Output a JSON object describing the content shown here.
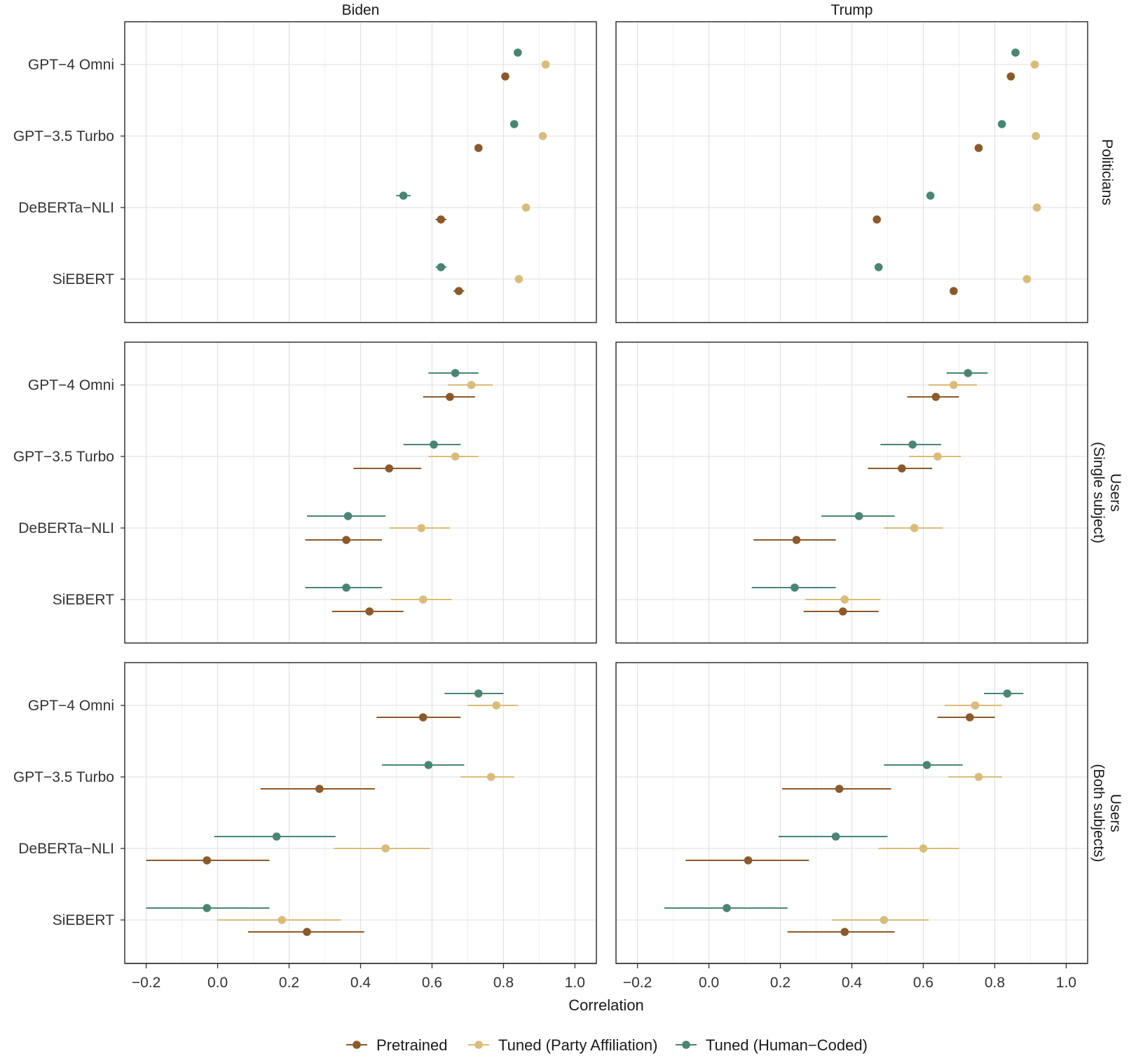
{
  "chart_data": {
    "type": "scatter",
    "subtype": "dot-and-whisker",
    "xlabel": "Correlation",
    "xlim": [
      -0.26,
      1.06
    ],
    "xticks": [
      "-0.2",
      "0.0",
      "0.2",
      "0.4",
      "0.6",
      "0.8",
      "1.0"
    ],
    "xtick_values": [
      -0.2,
      0,
      0.2,
      0.4,
      0.6,
      0.8,
      1.0
    ],
    "columns": [
      "Biden",
      "Trump"
    ],
    "rows": [
      "Politicians",
      "Users\n(Single subject)",
      "Users\n(Both subjects)"
    ],
    "models": [
      "GPT−4 Omni",
      "GPT−3.5 Turbo",
      "DeBERTa−NLI",
      "SiEBERT"
    ],
    "series": [
      {
        "name": "Pretrained",
        "color": "#8B5A2B"
      },
      {
        "name": "Tuned (Party Affiliation)",
        "color": "#D9BC7A"
      },
      {
        "name": "Tuned (Human−Coded)",
        "color": "#4A8573"
      }
    ],
    "panels": [
      {
        "column": "Biden",
        "row": "Politicians",
        "Pretrained": [
          [
            0.805,
            0.8,
            0.81
          ],
          [
            0.73,
            0.725,
            0.735
          ],
          [
            0.625,
            0.61,
            0.64
          ],
          [
            0.675,
            0.66,
            0.69
          ]
        ],
        "Tuned (Party Affiliation)": [
          [
            0.918,
            0.913,
            0.923
          ],
          [
            0.91,
            0.905,
            0.915
          ],
          [
            0.863,
            0.858,
            0.868
          ],
          [
            0.843,
            0.838,
            0.848
          ]
        ],
        "Tuned (Human−Coded)": [
          [
            0.84,
            0.835,
            0.845
          ],
          [
            0.83,
            0.825,
            0.835
          ],
          [
            0.52,
            0.5,
            0.54
          ],
          [
            0.625,
            0.61,
            0.64
          ]
        ]
      },
      {
        "column": "Trump",
        "row": "Politicians",
        "Pretrained": [
          [
            0.845,
            0.84,
            0.85
          ],
          [
            0.755,
            0.75,
            0.76
          ],
          [
            0.47,
            0.46,
            0.48
          ],
          [
            0.685,
            0.68,
            0.69
          ]
        ],
        "Tuned (Party Affiliation)": [
          [
            0.912,
            0.907,
            0.917
          ],
          [
            0.915,
            0.91,
            0.92
          ],
          [
            0.918,
            0.913,
            0.923
          ],
          [
            0.89,
            0.885,
            0.895
          ]
        ],
        "Tuned (Human−Coded)": [
          [
            0.858,
            0.853,
            0.863
          ],
          [
            0.82,
            0.815,
            0.825
          ],
          [
            0.62,
            0.615,
            0.625
          ],
          [
            0.475,
            0.465,
            0.485
          ]
        ]
      },
      {
        "column": "Biden",
        "row": "Users\n(Single subject)",
        "Pretrained": [
          [
            0.65,
            0.575,
            0.72
          ],
          [
            0.48,
            0.38,
            0.57
          ],
          [
            0.36,
            0.245,
            0.46
          ],
          [
            0.425,
            0.32,
            0.52
          ]
        ],
        "Tuned (Party Affiliation)": [
          [
            0.71,
            0.645,
            0.77
          ],
          [
            0.665,
            0.59,
            0.73
          ],
          [
            0.57,
            0.48,
            0.65
          ],
          [
            0.575,
            0.485,
            0.655
          ]
        ],
        "Tuned (Human−Coded)": [
          [
            0.665,
            0.59,
            0.73
          ],
          [
            0.605,
            0.52,
            0.68
          ],
          [
            0.365,
            0.25,
            0.47
          ],
          [
            0.36,
            0.245,
            0.46
          ]
        ]
      },
      {
        "column": "Trump",
        "row": "Users\n(Single subject)",
        "Pretrained": [
          [
            0.635,
            0.555,
            0.7
          ],
          [
            0.54,
            0.445,
            0.625
          ],
          [
            0.245,
            0.125,
            0.355
          ],
          [
            0.375,
            0.265,
            0.475
          ]
        ],
        "Tuned (Party Affiliation)": [
          [
            0.685,
            0.615,
            0.75
          ],
          [
            0.64,
            0.56,
            0.705
          ],
          [
            0.575,
            0.49,
            0.655
          ],
          [
            0.38,
            0.27,
            0.48
          ]
        ],
        "Tuned (Human−Coded)": [
          [
            0.725,
            0.665,
            0.78
          ],
          [
            0.57,
            0.48,
            0.65
          ],
          [
            0.42,
            0.315,
            0.52
          ],
          [
            0.24,
            0.12,
            0.355
          ]
        ]
      },
      {
        "column": "Biden",
        "row": "Users\n(Both subjects)",
        "Pretrained": [
          [
            0.575,
            0.445,
            0.68
          ],
          [
            0.285,
            0.12,
            0.44
          ],
          [
            -0.03,
            -0.2,
            0.145
          ],
          [
            0.25,
            0.085,
            0.41
          ]
        ],
        "Tuned (Party Affiliation)": [
          [
            0.78,
            0.7,
            0.84
          ],
          [
            0.765,
            0.68,
            0.83
          ],
          [
            0.47,
            0.325,
            0.595
          ],
          [
            0.18,
            0.0,
            0.345
          ]
        ],
        "Tuned (Human−Coded)": [
          [
            0.73,
            0.635,
            0.8
          ],
          [
            0.59,
            0.46,
            0.69
          ],
          [
            0.165,
            -0.01,
            0.33
          ],
          [
            -0.03,
            -0.2,
            0.145
          ]
        ]
      },
      {
        "column": "Trump",
        "row": "Users\n(Both subjects)",
        "Pretrained": [
          [
            0.73,
            0.64,
            0.8
          ],
          [
            0.365,
            0.205,
            0.51
          ],
          [
            0.11,
            -0.065,
            0.28
          ],
          [
            0.38,
            0.22,
            0.52
          ]
        ],
        "Tuned (Party Affiliation)": [
          [
            0.745,
            0.66,
            0.82
          ],
          [
            0.755,
            0.67,
            0.82
          ],
          [
            0.6,
            0.475,
            0.7
          ],
          [
            0.49,
            0.345,
            0.615
          ]
        ],
        "Tuned (Human−Coded)": [
          [
            0.835,
            0.77,
            0.88
          ],
          [
            0.61,
            0.49,
            0.71
          ],
          [
            0.355,
            0.195,
            0.5
          ],
          [
            0.05,
            -0.125,
            0.22
          ]
        ]
      }
    ]
  }
}
